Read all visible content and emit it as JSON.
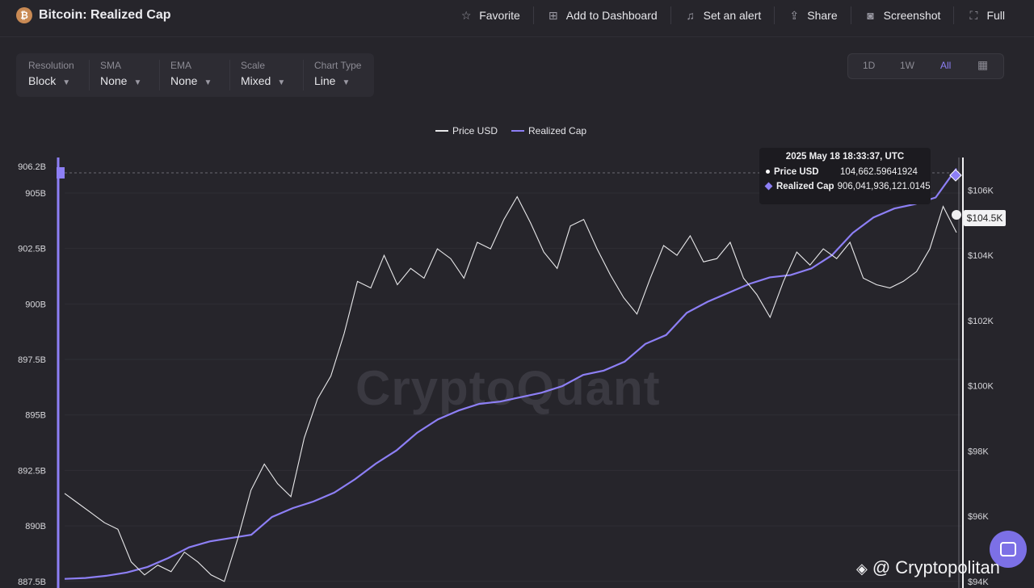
{
  "header": {
    "title": "Bitcoin: Realized Cap",
    "actions": [
      {
        "label": "Favorite",
        "icon": "star-icon"
      },
      {
        "label": "Add to Dashboard",
        "icon": "add-dashboard-icon"
      },
      {
        "label": "Set an alert",
        "icon": "bell-icon"
      },
      {
        "label": "Share",
        "icon": "share-icon"
      },
      {
        "label": "Screenshot",
        "icon": "camera-icon"
      },
      {
        "label": "Full",
        "icon": "fullscreen-icon"
      }
    ]
  },
  "controls": {
    "resolution": {
      "label": "Resolution",
      "value": "Block"
    },
    "sma": {
      "label": "SMA",
      "value": "None"
    },
    "ema": {
      "label": "EMA",
      "value": "None"
    },
    "scale": {
      "label": "Scale",
      "value": "Mixed"
    },
    "chart_type": {
      "label": "Chart Type",
      "value": "Line"
    }
  },
  "range": {
    "options": [
      "1D",
      "1W",
      "All"
    ],
    "active": "All",
    "calendar_icon": "calendar-icon"
  },
  "tooltip": {
    "time": "2025 May 18 18:33:37, UTC",
    "price_label": "Price USD",
    "price_value": "104,662.59641924",
    "cap_label": "Realized Cap",
    "cap_value": "906,041,936,121.0145"
  },
  "price_tag": "$104.5K",
  "watermark": "CryptoQuant",
  "brand": "@ Cryptopolitan",
  "colors": {
    "price": "#e8e8ea",
    "realized_cap": "#8d7ff5",
    "background": "#26252b"
  },
  "chart_data": {
    "type": "line",
    "title": "Bitcoin: Realized Cap",
    "legend": [
      "Price USD",
      "Realized Cap"
    ],
    "legend_position": "top-center",
    "left_axis": {
      "ticks": [
        "906.2B",
        "905B",
        "902.5B",
        "900B",
        "897.5B",
        "895B",
        "892.5B",
        "890B",
        "887.5B"
      ],
      "range": [
        887.2,
        906.6
      ]
    },
    "right_axis": {
      "ticks": [
        "$106K",
        "$104K",
        "$102K",
        "$100K",
        "$98K",
        "$96K",
        "$94K"
      ],
      "range": [
        93.8,
        107.0
      ]
    },
    "series": [
      {
        "name": "Realized Cap",
        "unit": "B",
        "values": [
          887.61,
          887.65,
          887.75,
          887.9,
          888.15,
          888.55,
          889.03,
          889.3,
          889.45,
          889.6,
          890.4,
          890.8,
          891.1,
          891.5,
          892.1,
          892.8,
          893.4,
          894.2,
          894.8,
          895.2,
          895.5,
          895.6,
          895.8,
          896.0,
          896.3,
          896.8,
          897.0,
          897.4,
          898.2,
          898.6,
          899.6,
          900.1,
          900.5,
          900.9,
          901.2,
          901.3,
          901.6,
          902.2,
          903.2,
          903.9,
          904.3,
          904.5,
          904.8,
          906.1
        ]
      },
      {
        "name": "Price USD",
        "unit": "K",
        "values": [
          96.7,
          96.4,
          96.1,
          95.8,
          95.6,
          94.6,
          94.2,
          94.5,
          94.3,
          94.9,
          94.6,
          94.2,
          94.0,
          95.3,
          96.8,
          97.6,
          97.0,
          96.6,
          98.4,
          99.6,
          100.3,
          101.6,
          103.2,
          103.0,
          104.0,
          103.1,
          103.6,
          103.3,
          104.2,
          103.9,
          103.3,
          104.4,
          104.2,
          105.1,
          105.8,
          105.0,
          104.1,
          103.6,
          104.9,
          105.1,
          104.2,
          103.4,
          102.7,
          102.2,
          103.3,
          104.3,
          104.0,
          104.6,
          103.8,
          103.9,
          104.4,
          103.3,
          102.8,
          102.1,
          103.2,
          104.1,
          103.7,
          104.2,
          103.9,
          104.4,
          103.3,
          103.1,
          103.0,
          103.2,
          103.5,
          104.2,
          105.5,
          104.7
        ]
      }
    ],
    "grid": true
  }
}
